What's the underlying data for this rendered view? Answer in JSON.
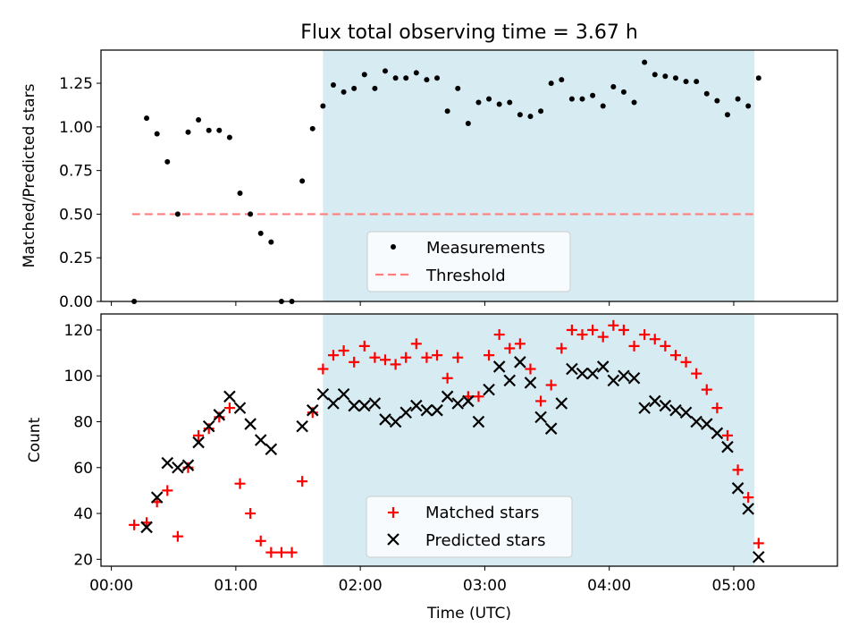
{
  "chart_data": [
    {
      "type": "scatter",
      "title": "Flux total observing time = 3.67 h",
      "xlabel": "",
      "ylabel": "Matched/Predicted stars",
      "xlim": [
        -5,
        350
      ],
      "ylim": [
        0,
        1.44
      ],
      "yticks": [
        0.0,
        0.25,
        0.5,
        0.75,
        1.0,
        1.25
      ],
      "ytick_labels": [
        "0.00",
        "0.25",
        "0.50",
        "0.75",
        "1.00",
        "1.25"
      ],
      "xticks": [
        0,
        60,
        120,
        180,
        240,
        300
      ],
      "shaded_span": [
        102,
        310
      ],
      "shade_color": "#add8e6",
      "threshold": {
        "value": 0.5,
        "x_range": [
          10,
          310
        ],
        "color": "#ff7f7f"
      },
      "legend": {
        "position": "lower-center",
        "entries": [
          "Measurements",
          "Threshold"
        ]
      },
      "series": [
        {
          "name": "Measurements",
          "color": "#000000",
          "x": [
            11,
            17,
            22,
            27,
            32,
            37,
            42,
            47,
            52,
            57,
            62,
            67,
            72,
            77,
            82,
            87,
            92,
            97,
            102,
            107,
            112,
            117,
            122,
            127,
            132,
            137,
            142,
            147,
            152,
            157,
            162,
            167,
            172,
            177,
            182,
            187,
            192,
            197,
            202,
            207,
            212,
            217,
            222,
            227,
            232,
            237,
            242,
            247,
            252,
            257,
            262,
            267,
            272,
            277,
            282,
            287,
            292,
            297,
            302,
            307,
            312
          ],
          "y": [
            0.0,
            1.05,
            0.96,
            0.8,
            0.5,
            0.97,
            1.04,
            0.98,
            0.98,
            0.94,
            0.62,
            0.5,
            0.39,
            0.34,
            0.0,
            0.0,
            0.69,
            0.99,
            1.12,
            1.24,
            1.2,
            1.22,
            1.3,
            1.22,
            1.32,
            1.28,
            1.28,
            1.31,
            1.27,
            1.28,
            1.09,
            1.22,
            1.02,
            1.14,
            1.16,
            1.13,
            1.14,
            1.07,
            1.06,
            1.09,
            1.25,
            1.27,
            1.16,
            1.16,
            1.18,
            1.12,
            1.23,
            1.2,
            1.14,
            1.37,
            1.3,
            1.29,
            1.28,
            1.26,
            1.26,
            1.19,
            1.15,
            1.07,
            1.16,
            1.12,
            1.28
          ]
        }
      ]
    },
    {
      "type": "scatter",
      "title": "",
      "xlabel": "Time (UTC)",
      "ylabel": "Count",
      "xlim": [
        -5,
        350
      ],
      "ylim": [
        17,
        127
      ],
      "yticks": [
        20,
        40,
        60,
        80,
        100,
        120
      ],
      "ytick_labels": [
        "20",
        "40",
        "60",
        "80",
        "100",
        "120"
      ],
      "xticks": [
        0,
        60,
        120,
        180,
        240,
        300
      ],
      "xtick_labels": [
        "00:00",
        "01:00",
        "02:00",
        "03:00",
        "04:00",
        "05:00"
      ],
      "shaded_span": [
        102,
        310
      ],
      "legend": {
        "position": "lower-center",
        "entries": [
          "Matched stars",
          "Predicted stars"
        ]
      },
      "series": [
        {
          "name": "Matched stars",
          "color": "#ff0000",
          "marker": "+",
          "x": [
            11,
            17,
            22,
            27,
            32,
            37,
            42,
            47,
            52,
            57,
            62,
            67,
            72,
            77,
            82,
            87,
            92,
            97,
            102,
            107,
            112,
            117,
            122,
            127,
            132,
            137,
            142,
            147,
            152,
            157,
            162,
            167,
            172,
            177,
            182,
            187,
            192,
            197,
            202,
            207,
            212,
            217,
            222,
            227,
            232,
            237,
            242,
            247,
            252,
            257,
            262,
            267,
            272,
            277,
            282,
            287,
            292,
            297,
            302,
            307,
            312
          ],
          "y": [
            35,
            36,
            45,
            50,
            30,
            60,
            74,
            77,
            82,
            86,
            53,
            40,
            28,
            23,
            23,
            23,
            54,
            84,
            103,
            109,
            111,
            106,
            113,
            108,
            107,
            105,
            108,
            114,
            108,
            109,
            99,
            108,
            91,
            91,
            109,
            118,
            112,
            114,
            103,
            89,
            96,
            112,
            120,
            118,
            120,
            117,
            122,
            120,
            113,
            118,
            116,
            113,
            109,
            106,
            101,
            94,
            86,
            74,
            59,
            47,
            27
          ]
        },
        {
          "name": "Predicted stars",
          "color": "#000000",
          "marker": "x",
          "x": [
            17,
            22,
            27,
            32,
            37,
            42,
            47,
            52,
            57,
            62,
            67,
            72,
            77,
            92,
            97,
            102,
            107,
            112,
            117,
            122,
            127,
            132,
            137,
            142,
            147,
            152,
            157,
            162,
            167,
            172,
            177,
            182,
            187,
            192,
            197,
            202,
            207,
            212,
            217,
            222,
            227,
            232,
            237,
            242,
            247,
            252,
            257,
            262,
            267,
            272,
            277,
            282,
            287,
            292,
            297,
            302,
            307,
            312
          ],
          "y": [
            34,
            47,
            62,
            60,
            61,
            71,
            78,
            83,
            91,
            86,
            79,
            72,
            68,
            78,
            85,
            92,
            88,
            92,
            87,
            87,
            88,
            81,
            80,
            84,
            87,
            85,
            85,
            91,
            88,
            89,
            80,
            94,
            104,
            98,
            106,
            97,
            82,
            77,
            88,
            103,
            101,
            101,
            104,
            98,
            100,
            99,
            86,
            89,
            87,
            85,
            84,
            80,
            79,
            75,
            69,
            51,
            42,
            21
          ]
        }
      ]
    }
  ]
}
